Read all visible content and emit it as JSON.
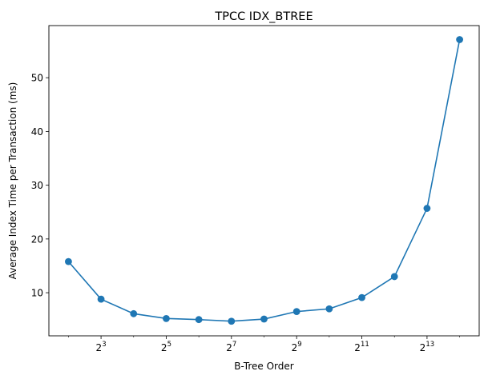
{
  "chart_data": {
    "type": "line",
    "title": "TPCC IDX_BTREE",
    "xlabel": "B-Tree Order",
    "ylabel": "Average Index Time per Transaction (ms)",
    "x_scale": "log2",
    "x_exponents": [
      2,
      3,
      4,
      5,
      6,
      7,
      8,
      9,
      10,
      11,
      12,
      13,
      14
    ],
    "series": [
      {
        "name": "TPCC IDX_BTREE",
        "color": "#1f77b4",
        "values": [
          15.8,
          8.8,
          6.1,
          5.2,
          5.0,
          4.7,
          5.1,
          6.5,
          7.0,
          9.1,
          13.0,
          25.7,
          57.1
        ]
      }
    ],
    "x_ticks": [
      {
        "exp": 3,
        "base": "2",
        "sup": "3"
      },
      {
        "exp": 5,
        "base": "2",
        "sup": "5"
      },
      {
        "exp": 7,
        "base": "2",
        "sup": "7"
      },
      {
        "exp": 9,
        "base": "2",
        "sup": "9"
      },
      {
        "exp": 11,
        "base": "2",
        "sup": "11"
      },
      {
        "exp": 13,
        "base": "2",
        "sup": "13"
      }
    ],
    "xlim_exp": [
      1.4,
      14.6
    ],
    "ylim": [
      1.98,
      59.7
    ],
    "y_ticks": [
      10,
      20,
      30,
      40,
      50
    ],
    "y_tick_labels": [
      "10",
      "20",
      "30",
      "40",
      "50"
    ],
    "grid": false
  }
}
